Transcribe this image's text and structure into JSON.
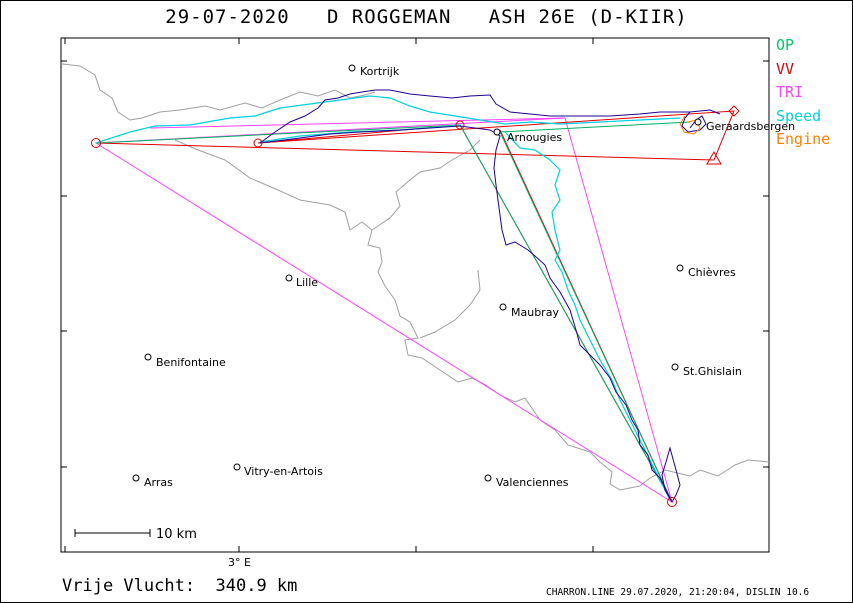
{
  "title": "29-07-2020   D ROGGEMAN   ASH 26E (D-KIIR)",
  "legend": [
    {
      "label": "OP",
      "color": "#00c864"
    },
    {
      "label": "VV",
      "color": "#e00000"
    },
    {
      "label": "TRI",
      "color": "#ff44ff"
    },
    {
      "label": "Speed",
      "color": "#00d0e0"
    },
    {
      "label": "Engine",
      "color": "#ff8000"
    }
  ],
  "towns": [
    "Kortrijk",
    "Geraardsbergen",
    "Arnougies",
    "Chièvres",
    "Lille",
    "Maubray",
    "Benifontaine",
    "St.Ghislain",
    "Vitry-en-Artois",
    "Arras",
    "Valenciennes"
  ],
  "scale_label": "10 km",
  "lon_label": "3° E",
  "distance_text": "Vrije Vlucht:  340.9 km",
  "footer_text": "CHARRON.LINE 29.07.2020, 21:20:04, DISLIN 10.6"
}
